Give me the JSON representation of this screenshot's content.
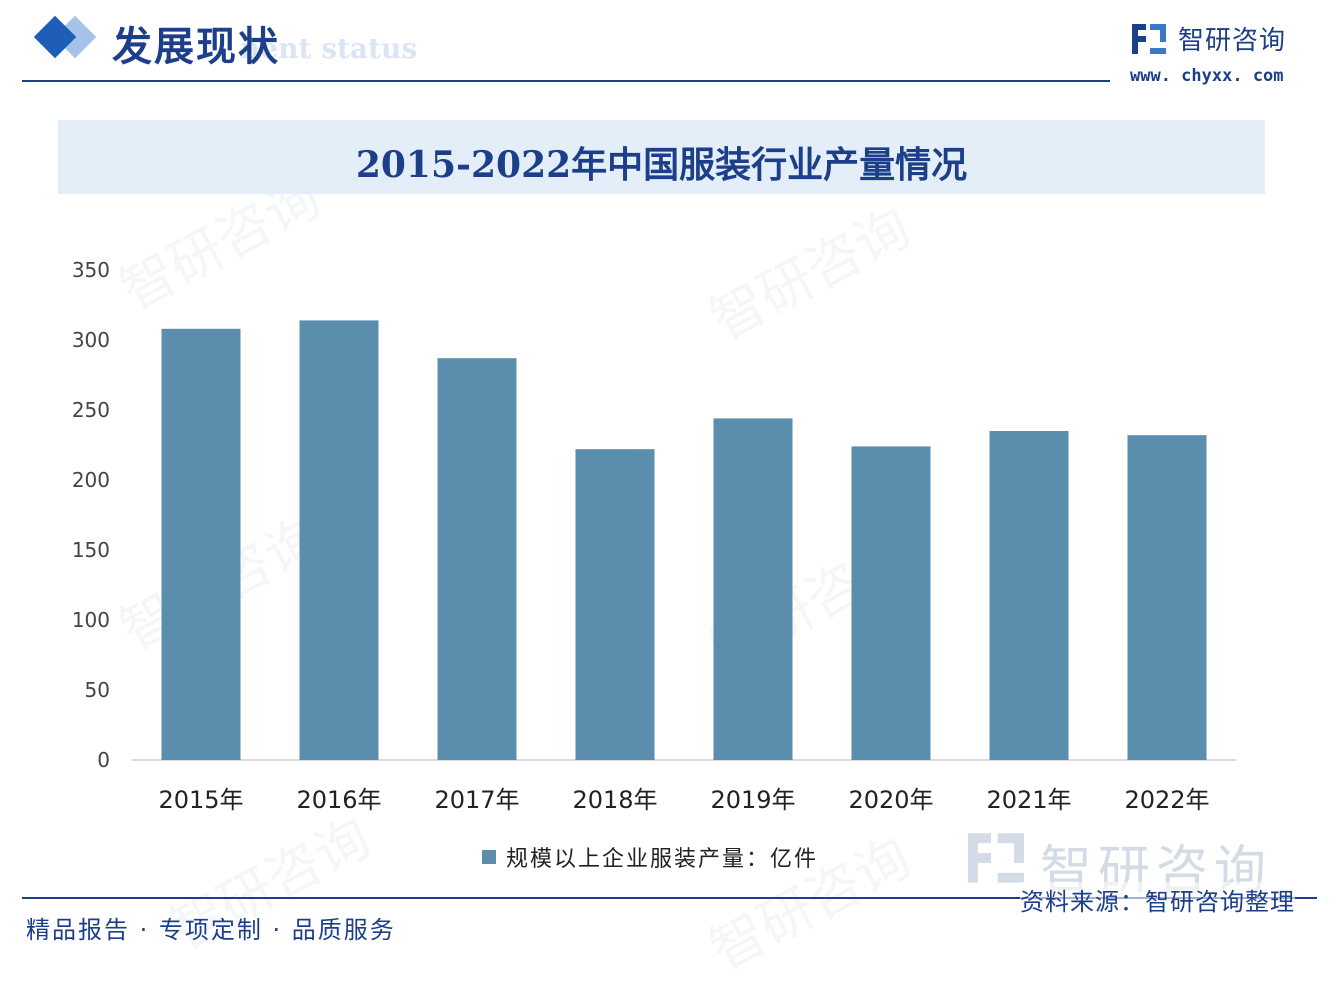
{
  "header": {
    "section_title": "发展现状",
    "section_subtitle": "nent status",
    "brand_name": "智研咨询",
    "brand_url": "www. chyxx. com",
    "logo_icon": "chyxx-logo-icon"
  },
  "colors": {
    "accent": "#1d3f8a",
    "bar": "#5b8ead",
    "title_band": "#e3eef8"
  },
  "watermark": {
    "text": "智研咨询"
  },
  "chart_data": {
    "type": "bar",
    "title": "2015-2022年中国服装行业产量情况",
    "categories": [
      "2015年",
      "2016年",
      "2017年",
      "2018年",
      "2019年",
      "2020年",
      "2021年",
      "2022年"
    ],
    "series": [
      {
        "name": "规模以上企业服装产量：亿件",
        "values": [
          308,
          314,
          287,
          222,
          244,
          224,
          235,
          232
        ]
      }
    ],
    "y_ticks": [
      "0",
      "50",
      "100",
      "150",
      "200",
      "250",
      "300",
      "350"
    ],
    "ylim": [
      0,
      350
    ],
    "grid": false,
    "legend_position": "bottom"
  },
  "footer": {
    "left_text": "精品报告 · 专项定制 · 品质服务",
    "source_text": "资料来源：智研咨询整理"
  }
}
